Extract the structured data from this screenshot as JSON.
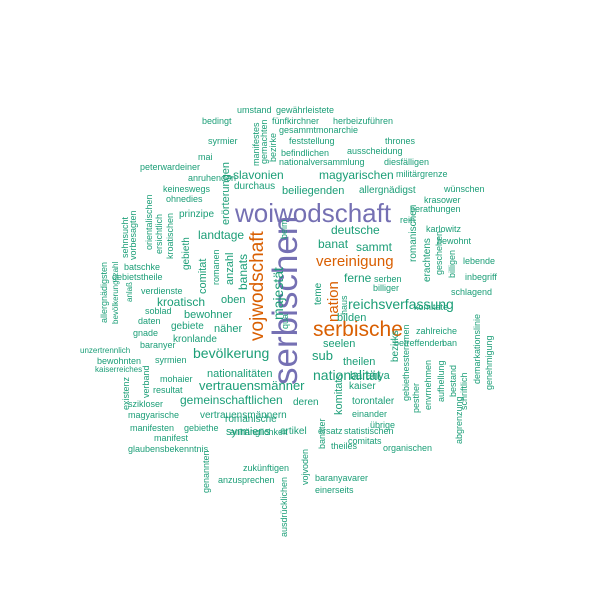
{
  "colors": {
    "big": "#7570b3",
    "mid": "#d95f02",
    "small": "#1b9e77"
  },
  "words": [
    {
      "t": "serbischen",
      "c": "big"
    },
    {
      "t": "woiwodschaft",
      "c": "big"
    },
    {
      "t": "serbische",
      "c": "mid"
    },
    {
      "t": "vojwodschaft",
      "c": "mid"
    },
    {
      "t": "vereinigung",
      "c": "mid"
    },
    {
      "t": "nation",
      "c": "mid"
    },
    {
      "t": "majestät",
      "c": "small"
    },
    {
      "t": "nationalität",
      "c": "small"
    },
    {
      "t": "reichsverfassung",
      "c": "small"
    },
    {
      "t": "bevölkerung",
      "c": "small"
    },
    {
      "t": "vertrauensmänner",
      "c": "small"
    },
    {
      "t": "gemeinschaftlichen",
      "c": "small"
    },
    {
      "t": "nationalitäten",
      "c": "small"
    },
    {
      "t": "kroatisch",
      "c": "small"
    },
    {
      "t": "landtage",
      "c": "small"
    },
    {
      "t": "slavonien",
      "c": "small"
    },
    {
      "t": "magyarischen",
      "c": "small"
    },
    {
      "t": "deutsche",
      "c": "small"
    },
    {
      "t": "sammt",
      "c": "small"
    },
    {
      "t": "banat",
      "c": "small"
    },
    {
      "t": "sub",
      "c": "small"
    },
    {
      "t": "seelen",
      "c": "small"
    },
    {
      "t": "bilden",
      "c": "small"
    },
    {
      "t": "ferne",
      "c": "small"
    },
    {
      "t": "theilen",
      "c": "small"
    },
    {
      "t": "baranya",
      "c": "small"
    },
    {
      "t": "kaiser",
      "c": "small"
    },
    {
      "t": "banats",
      "c": "small"
    },
    {
      "t": "anzahl",
      "c": "small"
    },
    {
      "t": "oben",
      "c": "small"
    },
    {
      "t": "bewohner",
      "c": "small"
    },
    {
      "t": "gebiete",
      "c": "small"
    },
    {
      "t": "näher",
      "c": "small"
    },
    {
      "t": "kronlande",
      "c": "small"
    },
    {
      "t": "beiliegenden",
      "c": "small"
    },
    {
      "t": "allergnädigst",
      "c": "small"
    },
    {
      "t": "durchaus",
      "c": "small"
    },
    {
      "t": "erörterungen",
      "c": "small"
    },
    {
      "t": "comitat",
      "c": "small"
    },
    {
      "t": "gebieth",
      "c": "small"
    },
    {
      "t": "prinzipe",
      "c": "small"
    },
    {
      "t": "romanischen",
      "c": "small"
    },
    {
      "t": "erachtens",
      "c": "small"
    },
    {
      "t": "berathungen",
      "c": "small"
    },
    {
      "t": "komitats",
      "c": "small"
    },
    {
      "t": "vertrauensmännern",
      "c": "small"
    },
    {
      "t": "syrmiens",
      "c": "small"
    },
    {
      "t": "artikel",
      "c": "small"
    },
    {
      "t": "deren",
      "c": "small"
    },
    {
      "t": "torontaler",
      "c": "small"
    },
    {
      "t": "einander",
      "c": "small"
    },
    {
      "t": "übrige",
      "c": "small"
    },
    {
      "t": "bezirks",
      "c": "small"
    },
    {
      "t": "betreffenden",
      "c": "small"
    },
    {
      "t": "komitate",
      "c": "small"
    },
    {
      "t": "zahlreiche",
      "c": "small"
    },
    {
      "t": "ban",
      "c": "small"
    },
    {
      "t": "romanische",
      "c": "small"
    },
    {
      "t": "anhänglichkeit",
      "c": "small"
    },
    {
      "t": "zukünftigen",
      "c": "small"
    },
    {
      "t": "anzusprechen",
      "c": "small"
    },
    {
      "t": "ersatz",
      "c": "small"
    },
    {
      "t": "statistischen",
      "c": "small"
    },
    {
      "t": "comitats",
      "c": "small"
    },
    {
      "t": "baranyavarer",
      "c": "small"
    },
    {
      "t": "einerseits",
      "c": "small"
    },
    {
      "t": "theiles",
      "c": "small"
    },
    {
      "t": "organischen",
      "c": "small"
    },
    {
      "t": "banater",
      "c": "small"
    },
    {
      "t": "vojvoden",
      "c": "small"
    },
    {
      "t": "ausdrücklichen",
      "c": "small"
    },
    {
      "t": "genannten",
      "c": "small"
    },
    {
      "t": "glaubensbekenntnis",
      "c": "small"
    },
    {
      "t": "manifest",
      "c": "small"
    },
    {
      "t": "manifesten",
      "c": "small"
    },
    {
      "t": "gebiethe",
      "c": "small"
    },
    {
      "t": "magyarische",
      "c": "small"
    },
    {
      "t": "szikloser",
      "c": "small"
    },
    {
      "t": "existenz",
      "c": "small"
    },
    {
      "t": "verband",
      "c": "small"
    },
    {
      "t": "resultat",
      "c": "small"
    },
    {
      "t": "mohaier",
      "c": "small"
    },
    {
      "t": "syrmien",
      "c": "small"
    },
    {
      "t": "baranyer",
      "c": "small"
    },
    {
      "t": "kaiserreiches",
      "c": "small"
    },
    {
      "t": "bewohnten",
      "c": "small"
    },
    {
      "t": "unzertrennlich",
      "c": "small"
    },
    {
      "t": "gnade",
      "c": "small"
    },
    {
      "t": "daten",
      "c": "small"
    },
    {
      "t": "soblad",
      "c": "small"
    },
    {
      "t": "verdienste",
      "c": "small"
    },
    {
      "t": "anlaß",
      "c": "small"
    },
    {
      "t": "gebietstheile",
      "c": "small"
    },
    {
      "t": "batschke",
      "c": "small"
    },
    {
      "t": "bevölkerungszahl",
      "c": "small"
    },
    {
      "t": "allergnädigsten",
      "c": "small"
    },
    {
      "t": "sehnsucht",
      "c": "small"
    },
    {
      "t": "vorbesagten",
      "c": "small"
    },
    {
      "t": "orientalischen",
      "c": "small"
    },
    {
      "t": "ersichtlich",
      "c": "small"
    },
    {
      "t": "kroatischen",
      "c": "small"
    },
    {
      "t": "keineswegs",
      "c": "small"
    },
    {
      "t": "ohnedies",
      "c": "small"
    },
    {
      "t": "anruhenden",
      "c": "small"
    },
    {
      "t": "peterwardeiner",
      "c": "small"
    },
    {
      "t": "mai",
      "c": "small"
    },
    {
      "t": "syrmier",
      "c": "small"
    },
    {
      "t": "bedingt",
      "c": "small"
    },
    {
      "t": "umstand",
      "c": "small"
    },
    {
      "t": "gewährleistete",
      "c": "small"
    },
    {
      "t": "fünfkirchner",
      "c": "small"
    },
    {
      "t": "herbeizuführen",
      "c": "small"
    },
    {
      "t": "gesammtmonarchie",
      "c": "small"
    },
    {
      "t": "feststellung",
      "c": "small"
    },
    {
      "t": "thrones",
      "c": "small"
    },
    {
      "t": "ausscheidung",
      "c": "small"
    },
    {
      "t": "befindlichen",
      "c": "small"
    },
    {
      "t": "nationalversammlung",
      "c": "small"
    },
    {
      "t": "diesfälligen",
      "c": "small"
    },
    {
      "t": "militärgrenze",
      "c": "small"
    },
    {
      "t": "wünschen",
      "c": "small"
    },
    {
      "t": "krasower",
      "c": "small"
    },
    {
      "t": "rein",
      "c": "small"
    },
    {
      "t": "karlowitz",
      "c": "small"
    },
    {
      "t": "bewohnt",
      "c": "small"
    },
    {
      "t": "serben",
      "c": "small"
    },
    {
      "t": "billiger",
      "c": "small"
    },
    {
      "t": "inbegriff",
      "c": "small"
    },
    {
      "t": "schlagend",
      "c": "small"
    },
    {
      "t": "lebende",
      "c": "small"
    },
    {
      "t": "demarkationslinie",
      "c": "small"
    },
    {
      "t": "genehmigung",
      "c": "small"
    },
    {
      "t": "schriftlich",
      "c": "small"
    },
    {
      "t": "aufhellung",
      "c": "small"
    },
    {
      "t": "bestand",
      "c": "small"
    },
    {
      "t": "abgrenzung",
      "c": "small"
    },
    {
      "t": "envrnehmen",
      "c": "small"
    },
    {
      "t": "gebiethes",
      "c": "small"
    },
    {
      "t": "pesther",
      "c": "small"
    },
    {
      "t": "sternmen",
      "c": "small"
    },
    {
      "t": "geschehen",
      "c": "small"
    },
    {
      "t": "billigen",
      "c": "small"
    },
    {
      "t": "haus",
      "c": "small"
    },
    {
      "t": "qua",
      "c": "small"
    },
    {
      "t": "teme",
      "c": "small"
    },
    {
      "t": "beim",
      "c": "small"
    },
    {
      "t": "romanen",
      "c": "small"
    },
    {
      "t": "manifestes",
      "c": "small"
    },
    {
      "t": "gemachten",
      "c": "small"
    },
    {
      "t": "bezirke",
      "c": "small"
    }
  ]
}
